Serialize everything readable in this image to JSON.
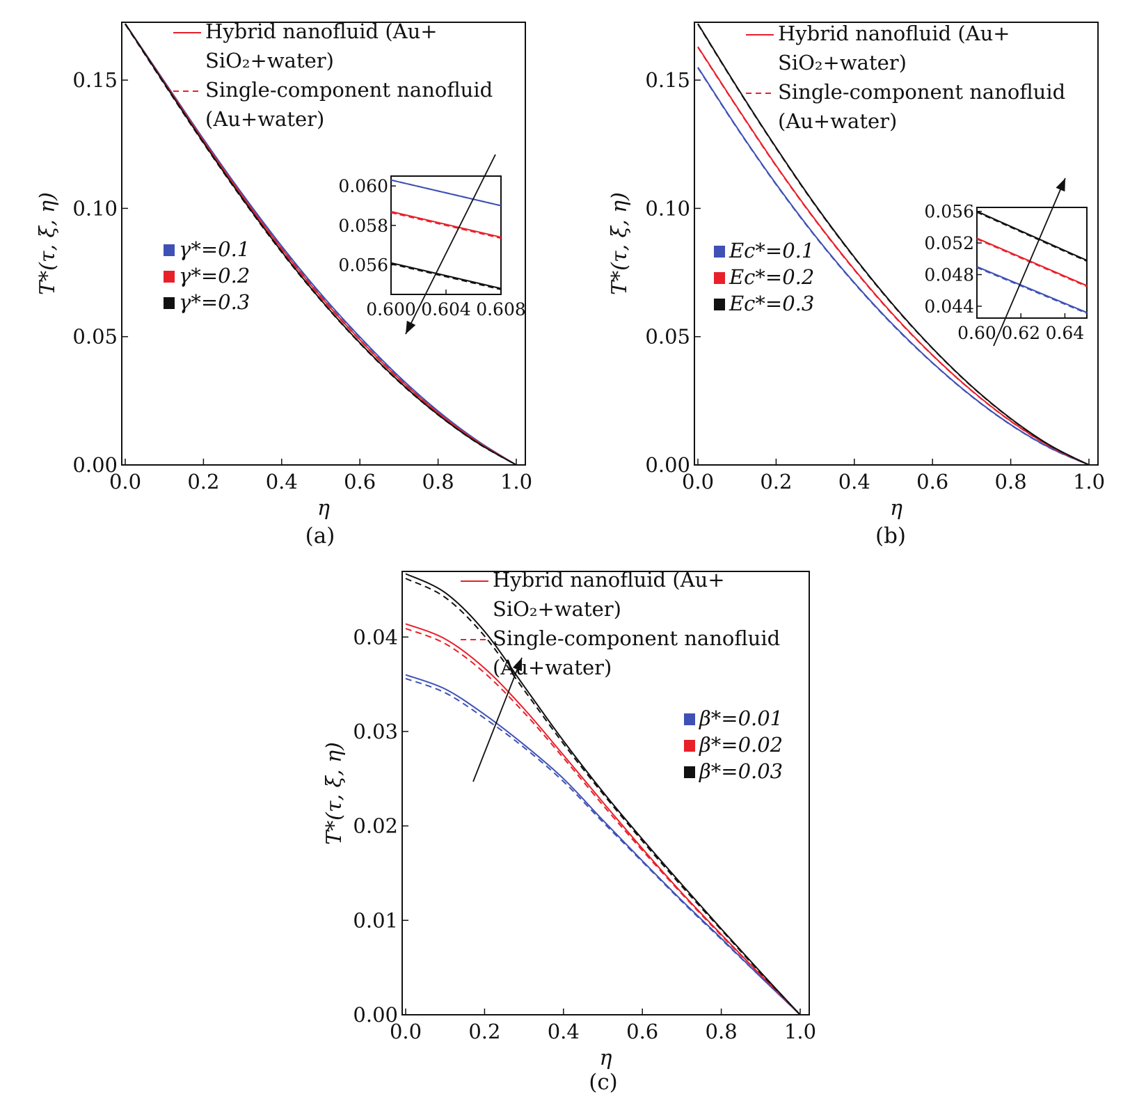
{
  "legend_styles": {
    "hybrid_label_line1": "Hybrid nanofluid (Au+",
    "hybrid_label_line2": "SiO₂+water)",
    "single_label_line1": "Single-component nanofluid",
    "single_label_line2": "(Au+water)"
  },
  "colors": {
    "blue": "#3f51b5",
    "red": "#e8202a",
    "black": "#111111"
  },
  "chart_data": [
    {
      "id": "a",
      "type": "line",
      "caption": "(a)",
      "xlabel": "η",
      "ylabel": "T*(τ, ξ, η)",
      "xlim": [
        0,
        1
      ],
      "ylim": [
        0,
        0.172
      ],
      "xticks": [
        0,
        0.2,
        0.4,
        0.6,
        0.8,
        1.0
      ],
      "xtick_labels": [
        "0.0",
        "0.2",
        "0.4",
        "0.6",
        "0.8",
        "1.0"
      ],
      "yticks": [
        0,
        0.05,
        0.1,
        0.15
      ],
      "ytick_labels": [
        "0.00",
        "0.05",
        "0.10",
        "0.15"
      ],
      "series": [
        {
          "name": "γ*=0.1",
          "color": "blue",
          "x": [
            0,
            0.1,
            0.2,
            0.3,
            0.4,
            0.5,
            0.6,
            0.7,
            0.8,
            0.9,
            1.0
          ],
          "hybrid": [
            0.172,
            0.1495,
            0.127,
            0.1055,
            0.0853,
            0.0667,
            0.0499,
            0.0345,
            0.021,
            0.0095,
            0
          ],
          "single": [
            0.1718,
            0.1492,
            0.1267,
            0.1052,
            0.085,
            0.0664,
            0.0497,
            0.0343,
            0.0209,
            0.0094,
            0
          ]
        },
        {
          "name": "γ*=0.2",
          "color": "red",
          "x": [
            0,
            0.1,
            0.2,
            0.3,
            0.4,
            0.5,
            0.6,
            0.7,
            0.8,
            0.9,
            1.0
          ],
          "hybrid": [
            0.172,
            0.1491,
            0.1264,
            0.1047,
            0.0843,
            0.0656,
            0.0488,
            0.0336,
            0.0203,
            0.0091,
            0
          ],
          "single": [
            0.1718,
            0.1488,
            0.1261,
            0.1044,
            0.084,
            0.0653,
            0.0486,
            0.0334,
            0.0202,
            0.009,
            0
          ]
        },
        {
          "name": "γ*=0.3",
          "color": "black",
          "x": [
            0,
            0.1,
            0.2,
            0.3,
            0.4,
            0.5,
            0.6,
            0.7,
            0.8,
            0.9,
            1.0
          ],
          "hybrid": [
            0.172,
            0.1487,
            0.1257,
            0.1038,
            0.0832,
            0.0644,
            0.0476,
            0.0326,
            0.0196,
            0.0087,
            0
          ],
          "single": [
            0.1718,
            0.1484,
            0.1254,
            0.1035,
            0.0829,
            0.0642,
            0.0474,
            0.0324,
            0.0195,
            0.0086,
            0
          ]
        }
      ],
      "legend_entries": [
        "γ*=0.1",
        "γ*=0.2",
        "γ*=0.3"
      ],
      "inset": {
        "xlim": [
          0.6,
          0.608
        ],
        "ylim": [
          0.0545,
          0.0605
        ],
        "xticks": [
          0.6,
          0.604,
          0.608
        ],
        "xtick_labels": [
          "0.600",
          "0.604",
          "0.608"
        ],
        "yticks": [
          0.056,
          0.058,
          0.06
        ],
        "ytick_labels": [
          "0.056",
          "0.058",
          "0.060"
        ],
        "series": [
          {
            "color": "blue",
            "hybrid": [
              0.0603,
              0.059
            ],
            "single": [
              0.0603,
              0.059
            ]
          },
          {
            "color": "red",
            "hybrid": [
              0.0587,
              0.0574
            ],
            "single": [
              0.05865,
              0.05735
            ]
          },
          {
            "color": "black",
            "hybrid": [
              0.0561,
              0.0548
            ],
            "single": [
              0.05605,
              0.05475
            ]
          }
        ]
      }
    },
    {
      "id": "b",
      "type": "line",
      "caption": "(b)",
      "xlabel": "η",
      "ylabel": "T*(τ, ξ, η)",
      "xlim": [
        0,
        1
      ],
      "ylim": [
        0,
        0.172
      ],
      "xticks": [
        0,
        0.2,
        0.4,
        0.6,
        0.8,
        1.0
      ],
      "xtick_labels": [
        "0.0",
        "0.2",
        "0.4",
        "0.6",
        "0.8",
        "1.0"
      ],
      "yticks": [
        0,
        0.05,
        0.1,
        0.15
      ],
      "ytick_labels": [
        "0.00",
        "0.05",
        "0.10",
        "0.15"
      ],
      "series": [
        {
          "name": "Ec*=0.1",
          "color": "blue",
          "x": [
            0,
            0.1,
            0.2,
            0.3,
            0.4,
            0.5,
            0.6,
            0.7,
            0.8,
            0.9,
            1.0
          ],
          "hybrid": [
            0.155,
            0.1315,
            0.1095,
            0.0893,
            0.071,
            0.0545,
            0.0398,
            0.0268,
            0.0157,
            0.0067,
            0
          ],
          "single": [
            0.1548,
            0.1313,
            0.1093,
            0.0891,
            0.0708,
            0.0543,
            0.0397,
            0.0267,
            0.0156,
            0.0066,
            0
          ]
        },
        {
          "name": "Ec*=0.2",
          "color": "red",
          "x": [
            0,
            0.1,
            0.2,
            0.3,
            0.4,
            0.5,
            0.6,
            0.7,
            0.8,
            0.9,
            1.0
          ],
          "hybrid": [
            0.163,
            0.1395,
            0.1167,
            0.0956,
            0.0762,
            0.0585,
            0.0428,
            0.029,
            0.0171,
            0.0073,
            0
          ],
          "single": [
            0.1628,
            0.1393,
            0.1165,
            0.0954,
            0.076,
            0.0583,
            0.0427,
            0.0289,
            0.017,
            0.0072,
            0
          ]
        },
        {
          "name": "Ec*=0.3",
          "color": "black",
          "x": [
            0,
            0.1,
            0.2,
            0.3,
            0.4,
            0.5,
            0.6,
            0.7,
            0.8,
            0.9,
            1.0
          ],
          "hybrid": [
            0.172,
            0.1473,
            0.1237,
            0.1014,
            0.081,
            0.0623,
            0.0455,
            0.0307,
            0.0181,
            0.0077,
            0
          ],
          "single": [
            0.1718,
            0.1471,
            0.1235,
            0.1012,
            0.0808,
            0.0621,
            0.0454,
            0.0306,
            0.018,
            0.0076,
            0
          ]
        }
      ],
      "legend_entries": [
        "Ec*=0.1",
        "Ec*=0.2",
        "Ec*=0.3"
      ],
      "inset": {
        "xlim": [
          0.6,
          0.65
        ],
        "ylim": [
          0.0425,
          0.0565
        ],
        "xticks": [
          0.6,
          0.62,
          0.64
        ],
        "xtick_labels": [
          "0.60",
          "0.62",
          "0.64"
        ],
        "yticks": [
          0.044,
          0.048,
          0.052,
          0.056
        ],
        "ytick_labels": [
          "0.044",
          "0.048",
          "0.052",
          "0.056"
        ],
        "series": [
          {
            "color": "blue",
            "hybrid": [
              0.049,
              0.0432
            ],
            "single": [
              0.0489,
              0.0431
            ]
          },
          {
            "color": "red",
            "hybrid": [
              0.0526,
              0.0466
            ],
            "single": [
              0.0525,
              0.0465
            ]
          },
          {
            "color": "black",
            "hybrid": [
              0.056,
              0.0498
            ],
            "single": [
              0.0559,
              0.0497
            ]
          }
        ]
      }
    },
    {
      "id": "c",
      "type": "line",
      "caption": "(c)",
      "xlabel": "η",
      "ylabel": "T*(τ, ξ, η)",
      "xlim": [
        0,
        1
      ],
      "ylim": [
        0,
        0.0468
      ],
      "xticks": [
        0,
        0.2,
        0.4,
        0.6,
        0.8,
        1.0
      ],
      "xtick_labels": [
        "0.0",
        "0.2",
        "0.4",
        "0.6",
        "0.8",
        "1.0"
      ],
      "yticks": [
        0,
        0.01,
        0.02,
        0.03,
        0.04
      ],
      "ytick_labels": [
        "0.00",
        "0.01",
        "0.02",
        "0.03",
        "0.04"
      ],
      "series": [
        {
          "name": "β*=0.01",
          "color": "blue",
          "x": [
            0,
            0.1,
            0.2,
            0.3,
            0.4,
            0.5,
            0.6,
            0.7,
            0.8,
            0.9,
            1.0
          ],
          "hybrid": [
            0.036,
            0.0345,
            0.0318,
            0.0286,
            0.025,
            0.0206,
            0.0163,
            0.0121,
            0.0081,
            0.004,
            0
          ],
          "single": [
            0.0356,
            0.0341,
            0.0314,
            0.0283,
            0.0247,
            0.0204,
            0.0162,
            0.012,
            0.008,
            0.004,
            0
          ]
        },
        {
          "name": "β*=0.02",
          "color": "red",
          "x": [
            0,
            0.1,
            0.2,
            0.3,
            0.4,
            0.5,
            0.6,
            0.7,
            0.8,
            0.9,
            1.0
          ],
          "hybrid": [
            0.0414,
            0.0398,
            0.0367,
            0.0324,
            0.0275,
            0.0225,
            0.0176,
            0.0129,
            0.0085,
            0.0042,
            0
          ],
          "single": [
            0.0409,
            0.0393,
            0.0362,
            0.032,
            0.0272,
            0.0222,
            0.0174,
            0.0128,
            0.0084,
            0.0042,
            0
          ]
        },
        {
          "name": "β*=0.03",
          "color": "black",
          "x": [
            0,
            0.1,
            0.2,
            0.3,
            0.4,
            0.5,
            0.6,
            0.7,
            0.8,
            0.9,
            1.0
          ],
          "hybrid": [
            0.0467,
            0.0447,
            0.0406,
            0.0348,
            0.029,
            0.0236,
            0.0186,
            0.0138,
            0.0091,
            0.0045,
            0
          ],
          "single": [
            0.0462,
            0.0442,
            0.0401,
            0.0344,
            0.0287,
            0.0234,
            0.0184,
            0.0136,
            0.009,
            0.0044,
            0
          ]
        }
      ],
      "legend_entries": [
        "β*=0.01",
        "β*=0.02",
        "β*=0.03"
      ]
    }
  ]
}
